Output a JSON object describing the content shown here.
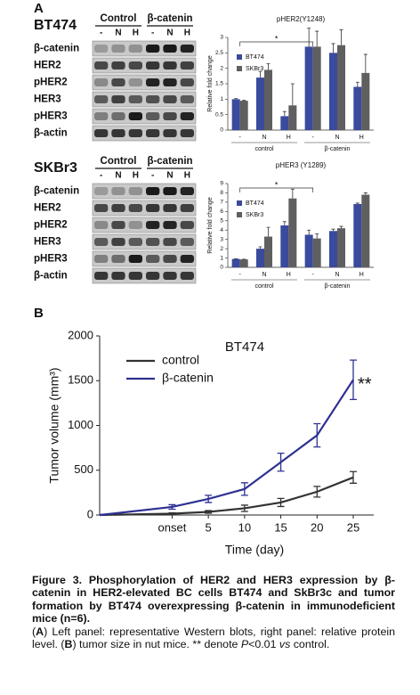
{
  "panel_labels": [
    "A",
    "B"
  ],
  "blots": [
    {
      "cell_line": "BT474",
      "groups": [
        "Control",
        "β-catenin"
      ],
      "lanes": [
        "-",
        "N",
        "H",
        "-",
        "N",
        "H"
      ],
      "rows": [
        "β-catenin",
        "HER2",
        "pHER2",
        "HER3",
        "pHER3",
        "β-actin"
      ]
    },
    {
      "cell_line": "SKBr3",
      "groups": [
        "Control",
        "β-catenin"
      ],
      "lanes": [
        "-",
        "N",
        "H",
        "-",
        "N",
        "H"
      ],
      "rows": [
        "β-catenin",
        "HER2",
        "pHER2",
        "HER3",
        "pHER3",
        "β-actin"
      ]
    }
  ],
  "chart_data": [
    {
      "type": "bar",
      "title": "pHER2(Y1248)",
      "y_label": "Relative fold change",
      "categories": [
        "-",
        "N",
        "H",
        "-",
        "N",
        "H"
      ],
      "groups": [
        "control",
        "β-catenin"
      ],
      "annotation": "*",
      "series": [
        {
          "name": "BT474",
          "color": "#3a4a9c",
          "values": [
            1.0,
            1.7,
            0.45,
            2.7,
            2.5,
            1.4
          ],
          "errors": [
            0.02,
            0.2,
            0.15,
            0.6,
            0.3,
            0.15
          ]
        },
        {
          "name": "SKBr3",
          "color": "#5f5f5f",
          "values": [
            0.95,
            1.95,
            0.8,
            2.7,
            2.75,
            1.85
          ],
          "errors": [
            0.02,
            0.2,
            0.7,
            0.5,
            0.5,
            0.6
          ]
        }
      ],
      "ylim": [
        0,
        3
      ],
      "yticks": [
        0,
        0.5,
        1,
        1.5,
        2,
        2.5,
        3
      ],
      "legend": "upper left"
    },
    {
      "type": "bar",
      "title": "pHER3 (Y1289)",
      "y_label": "Relative fold change",
      "categories": [
        "-",
        "N",
        "H",
        "-",
        "N",
        "H"
      ],
      "groups": [
        "control",
        "β-catenin"
      ],
      "annotation": "*",
      "series": [
        {
          "name": "BT474",
          "color": "#3a4a9c",
          "values": [
            0.9,
            2.0,
            4.5,
            3.5,
            3.9,
            6.8
          ],
          "errors": [
            0.02,
            0.2,
            0.4,
            0.5,
            0.2,
            0.1
          ]
        },
        {
          "name": "SKBr3",
          "color": "#5f5f5f",
          "values": [
            0.85,
            3.3,
            7.4,
            3.1,
            4.2,
            7.8
          ],
          "errors": [
            0.02,
            1.0,
            1.0,
            0.5,
            0.2,
            0.2
          ]
        }
      ],
      "ylim": [
        0,
        9
      ],
      "yticks": [
        0,
        1,
        2,
        3,
        4,
        5,
        6,
        7,
        8,
        9
      ],
      "legend": "upper left"
    },
    {
      "type": "line",
      "title": "BT474",
      "x_label": "Time (day)",
      "y_label": "Tumor volume (mm³)",
      "categories": [
        null,
        "onset",
        "5",
        "10",
        "15",
        "20",
        "25"
      ],
      "annotation": "**",
      "series": [
        {
          "name": "control",
          "color": "#333333",
          "values": [
            0,
            15,
            35,
            75,
            140,
            260,
            420
          ],
          "errors": [
            0,
            10,
            15,
            35,
            45,
            60,
            65
          ]
        },
        {
          "name": "β-catenin",
          "color": "#2e3192",
          "values": [
            0,
            90,
            180,
            290,
            590,
            890,
            1510
          ],
          "errors": [
            0,
            25,
            40,
            70,
            100,
            130,
            220
          ]
        }
      ],
      "ylim": [
        0,
        2000
      ],
      "yticks": [
        0,
        500,
        1000,
        1500,
        2000
      ],
      "legend": "upper left"
    }
  ],
  "caption": {
    "title": "Figure 3. Phosphorylation of HER2 and HER3 expression by β-catenin in HER2-elevated BC cells BT474 and SkBr3c and tumor formation by BT474 overexpressing β-catenin in immunodeficient mice (n=6).",
    "body": [
      "(",
      "A",
      ") Left panel: representative Western blots, right panel: relative protein level. (",
      "B",
      ") tumor size in nut mice. ** denote ",
      "P",
      "<0.01 ",
      "vs",
      " control."
    ]
  }
}
